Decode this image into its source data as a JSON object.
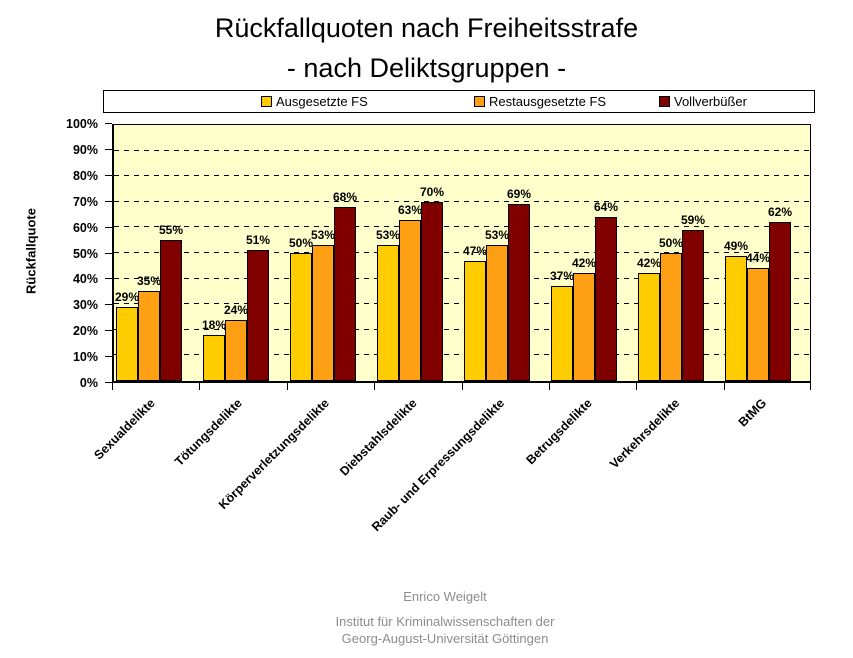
{
  "title": {
    "line1": "Rückfallquoten nach Freiheitsstrafe",
    "line2": "- nach Deliktsgruppen -"
  },
  "chart_data": {
    "type": "bar",
    "title": "Rückfallquoten nach Freiheitsstrafe - nach Deliktsgruppen -",
    "ylabel": "Rückfallquote",
    "xlabel": "",
    "ylim": [
      0,
      100
    ],
    "ytick_step": 10,
    "ytick_labels": [
      "0%",
      "10%",
      "20%",
      "30%",
      "40%",
      "50%",
      "60%",
      "70%",
      "80%",
      "90%",
      "100%"
    ],
    "grid": "horizontal-dashed",
    "grid_color": "#000000",
    "plot_bg": "#FFFFCC",
    "legend_position": "top",
    "value_suffix": "%",
    "categories": [
      "Sexualdelikte",
      "Tötungsdelikte",
      "Körperverletzungsdelikte",
      "Diebstahlsdelikte",
      "Raub- und Erpressungsdelikte",
      "Betrugsdelikte",
      "Verkehrsdelikte",
      "BtMG"
    ],
    "series": [
      {
        "name": "Ausgesetzte FS",
        "color": "#FFCC00",
        "values": [
          29,
          18,
          50,
          53,
          47,
          37,
          42,
          49
        ]
      },
      {
        "name": "Restausgesetzte FS",
        "color": "#FFA014",
        "values": [
          35,
          24,
          53,
          63,
          53,
          42,
          50,
          44
        ]
      },
      {
        "name": "Vollverbüßer",
        "color": "#800000",
        "values": [
          55,
          51,
          68,
          70,
          69,
          64,
          59,
          62
        ]
      }
    ]
  },
  "footer": {
    "line1": "Enrico Weigelt",
    "line2": "Institut für Kriminalwissenschaften der",
    "line3": "Georg-August-Universität Göttingen",
    "color": "#8c8c8c"
  }
}
